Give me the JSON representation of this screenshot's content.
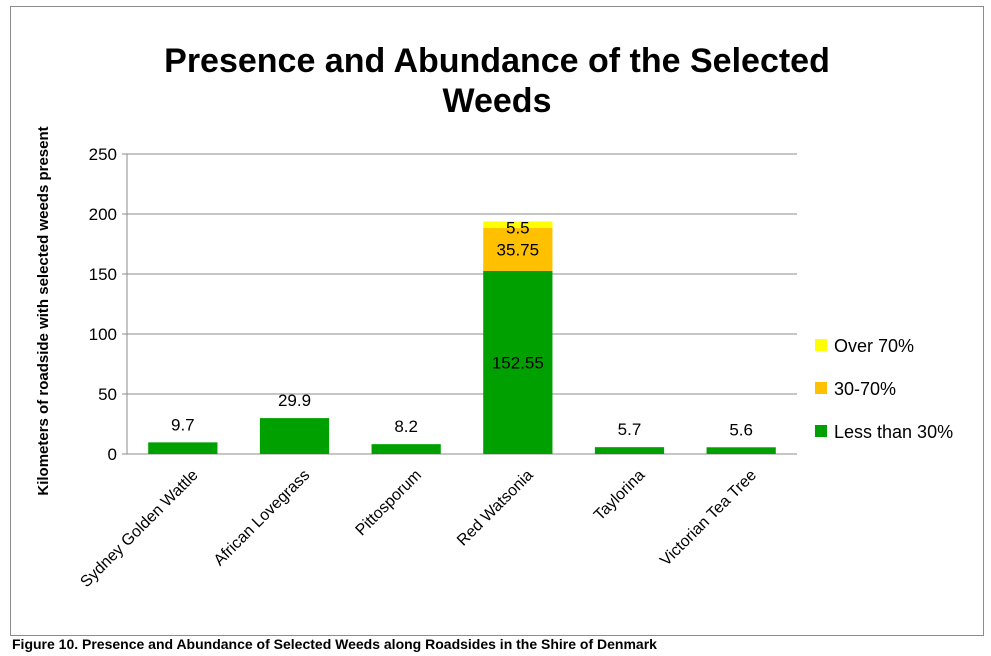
{
  "chart_data": {
    "type": "bar",
    "stacked": true,
    "title": "Presence and Abundance of the Selected Weeds",
    "ylabel": "Kilometers of roadside with selected weeds present",
    "xlabel": "",
    "ylim": [
      0,
      250
    ],
    "yticks": [
      0,
      50,
      100,
      150,
      200,
      250
    ],
    "grid": true,
    "legend": "right",
    "categories": [
      "Sydney Golden Wattle",
      "African Lovegrass",
      "Pittosporum",
      "Red Watsonia",
      "Taylorina",
      "Victorian Tea Tree"
    ],
    "series": [
      {
        "name": "Less than 30%",
        "color": "#00a000",
        "values": [
          9.7,
          29.9,
          8.2,
          152.55,
          5.7,
          5.6
        ]
      },
      {
        "name": "30-70%",
        "color": "#ffc000",
        "values": [
          0,
          0,
          0,
          35.75,
          0,
          0
        ]
      },
      {
        "name": "Over 70%",
        "color": "#ffff00",
        "values": [
          0,
          0,
          0,
          5.5,
          0,
          0
        ]
      }
    ],
    "data_labels": [
      {
        "category": "Sydney Golden Wattle",
        "series": "Less than 30%",
        "text": "9.7"
      },
      {
        "category": "African Lovegrass",
        "series": "Less than 30%",
        "text": "29.9"
      },
      {
        "category": "Pittosporum",
        "series": "Less than 30%",
        "text": "8.2"
      },
      {
        "category": "Red Watsonia",
        "series": "Less than 30%",
        "text": "152.55"
      },
      {
        "category": "Red Watsonia",
        "series": "30-70%",
        "text": "35.75"
      },
      {
        "category": "Red Watsonia",
        "series": "Over 70%",
        "text": "5.5"
      },
      {
        "category": "Taylorina",
        "series": "Less than 30%",
        "text": "5.7"
      },
      {
        "category": "Victorian Tea Tree",
        "series": "Less than 30%",
        "text": "5.6"
      }
    ]
  },
  "caption": "Figure 10. Presence and Abundance of Selected Weeds along Roadsides in the Shire of Denmark"
}
